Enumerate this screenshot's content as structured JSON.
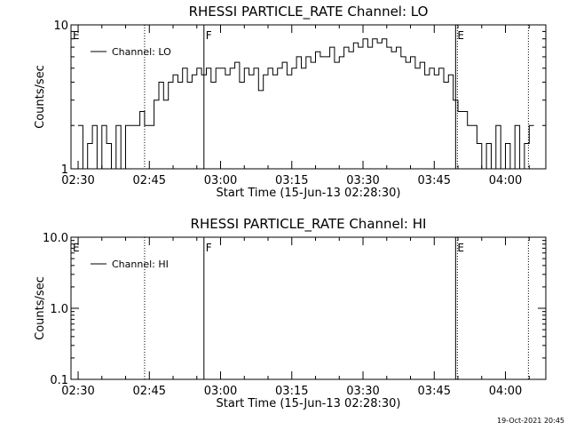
{
  "footer": {
    "timestamp": "19-Oct-2021 20:45"
  },
  "chart_data": [
    {
      "type": "line",
      "title": "RHESSI PARTICLE_RATE Channel: LO",
      "xlabel": "Start Time (15-Jun-13 02:28:30)",
      "ylabel": "Counts/sec",
      "yscale": "log",
      "ylim": [
        1,
        10
      ],
      "ytick_labels": [
        {
          "value": 1,
          "label": "1"
        },
        {
          "value": 10,
          "label": "10"
        }
      ],
      "xlim": [
        "02:28:30",
        "04:08:30"
      ],
      "xtick_labels": [
        "02:30",
        "02:45",
        "03:00",
        "03:15",
        "03:30",
        "03:45",
        "04:00"
      ],
      "legend": {
        "placement": "top-left",
        "entries": [
          "Channel: LO"
        ]
      },
      "markers": [
        {
          "label": "E",
          "time": "02:28:30",
          "style": "none"
        },
        {
          "label": "",
          "time": "02:44:00",
          "style": "dotted"
        },
        {
          "label": "F",
          "time": "02:56:30",
          "style": "solid"
        },
        {
          "label": "E",
          "time": "03:49:30",
          "style": "solid"
        },
        {
          "label": "",
          "time": "04:04:50",
          "style": "dotted"
        }
      ],
      "series": [
        {
          "name": "Channel: LO",
          "x": [
            "02:30:00",
            "02:31:00",
            "02:32:00",
            "02:33:00",
            "02:34:00",
            "02:35:00",
            "02:36:00",
            "02:37:00",
            "02:38:00",
            "02:39:00",
            "02:40:00",
            "02:41:00",
            "02:42:00",
            "02:43:00",
            "02:44:00",
            "02:45:00",
            "02:46:00",
            "02:47:00",
            "02:48:00",
            "02:49:00",
            "02:50:00",
            "02:51:00",
            "02:52:00",
            "02:53:00",
            "02:54:00",
            "02:55:00",
            "02:56:00",
            "02:57:00",
            "02:58:00",
            "02:59:00",
            "03:00:00",
            "03:01:00",
            "03:02:00",
            "03:03:00",
            "03:04:00",
            "03:05:00",
            "03:06:00",
            "03:07:00",
            "03:08:00",
            "03:09:00",
            "03:10:00",
            "03:11:00",
            "03:12:00",
            "03:13:00",
            "03:14:00",
            "03:15:00",
            "03:16:00",
            "03:17:00",
            "03:18:00",
            "03:19:00",
            "03:20:00",
            "03:21:00",
            "03:22:00",
            "03:23:00",
            "03:24:00",
            "03:25:00",
            "03:26:00",
            "03:27:00",
            "03:28:00",
            "03:29:00",
            "03:30:00",
            "03:31:00",
            "03:32:00",
            "03:33:00",
            "03:34:00",
            "03:35:00",
            "03:36:00",
            "03:37:00",
            "03:38:00",
            "03:39:00",
            "03:40:00",
            "03:41:00",
            "03:42:00",
            "03:43:00",
            "03:44:00",
            "03:45:00",
            "03:46:00",
            "03:47:00",
            "03:48:00",
            "03:49:00",
            "03:50:00",
            "03:51:00",
            "03:52:00",
            "03:53:00",
            "03:54:00",
            "03:55:00",
            "03:56:00",
            "03:57:00",
            "03:58:00",
            "03:59:00",
            "04:00:00",
            "04:01:00",
            "04:02:00",
            "04:03:00",
            "04:04:00",
            "04:05:00"
          ],
          "values": [
            2,
            1,
            1.5,
            2,
            1,
            2,
            1.5,
            1,
            2,
            1,
            2,
            2,
            2,
            2.5,
            2,
            2,
            3,
            4,
            3,
            4,
            4.5,
            4,
            5,
            4,
            4.5,
            5,
            4.5,
            5,
            4,
            5,
            5,
            4.5,
            5,
            5.5,
            4,
            5,
            4.5,
            5,
            3.5,
            4.5,
            5,
            4.5,
            5,
            5.5,
            4.5,
            5,
            6,
            5,
            6,
            5.5,
            6.5,
            6,
            6,
            7,
            5.5,
            6,
            7,
            6.5,
            7.5,
            7,
            8,
            7,
            8,
            7.5,
            8,
            7,
            6.5,
            7,
            6,
            5.5,
            6,
            5,
            5.5,
            4.5,
            5,
            4.5,
            5,
            4,
            4.5,
            3,
            2.5,
            2.5,
            2,
            2,
            1.5,
            1,
            1.5,
            1,
            2,
            1,
            1.5,
            1,
            2,
            1,
            1.5,
            2
          ]
        }
      ]
    },
    {
      "type": "line",
      "title": "RHESSI PARTICLE_RATE Channel: HI",
      "xlabel": "Start Time (15-Jun-13 02:28:30)",
      "ylabel": "Counts/sec",
      "yscale": "log",
      "ylim": [
        0.1,
        10
      ],
      "ytick_labels": [
        {
          "value": 0.1,
          "label": "0.1"
        },
        {
          "value": 1,
          "label": "1.0"
        },
        {
          "value": 10,
          "label": "10.0"
        }
      ],
      "xlim": [
        "02:28:30",
        "04:08:30"
      ],
      "xtick_labels": [
        "02:30",
        "02:45",
        "03:00",
        "03:15",
        "03:30",
        "03:45",
        "04:00"
      ],
      "legend": {
        "placement": "top-left",
        "entries": [
          "Channel: HI"
        ]
      },
      "markers": [
        {
          "label": "E",
          "time": "02:28:30",
          "style": "none"
        },
        {
          "label": "",
          "time": "02:44:00",
          "style": "dotted"
        },
        {
          "label": "F",
          "time": "02:56:30",
          "style": "solid"
        },
        {
          "label": "E",
          "time": "03:49:30",
          "style": "solid"
        },
        {
          "label": "",
          "time": "04:04:50",
          "style": "dotted"
        }
      ],
      "series": [
        {
          "name": "Channel: HI",
          "x": [],
          "values": []
        }
      ]
    }
  ]
}
